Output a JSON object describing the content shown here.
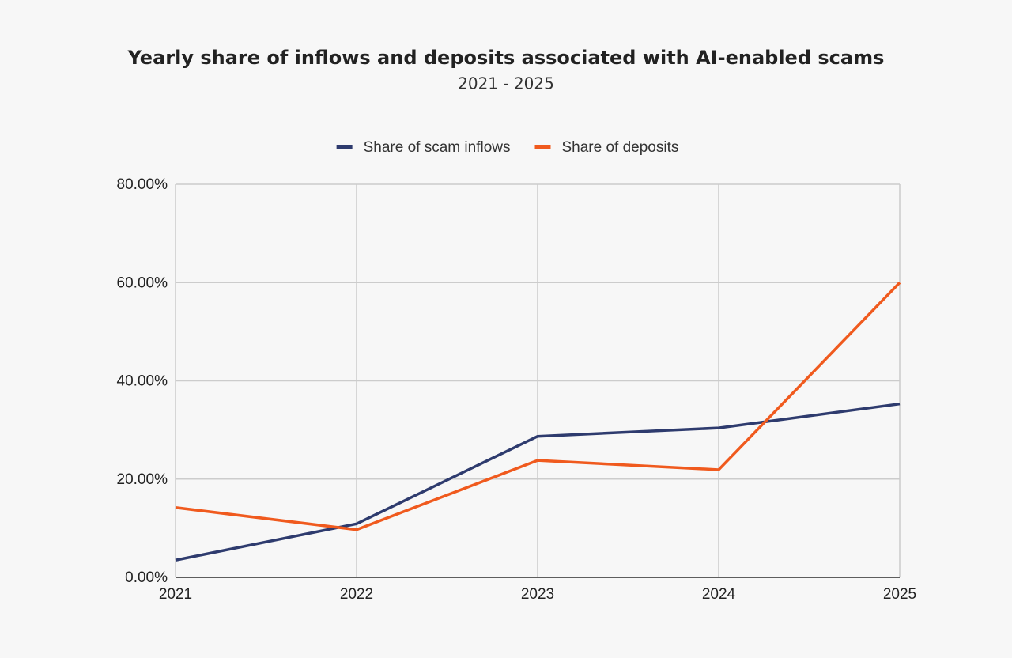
{
  "chart_data": {
    "type": "line",
    "title": "Yearly share of inflows and deposits associated with AI-enabled scams",
    "subtitle": "2021 - 2025",
    "categories": [
      "2021",
      "2022",
      "2023",
      "2024",
      "2025"
    ],
    "series": [
      {
        "name": "Share of scam inflows",
        "color": "#2e3b6e",
        "values": [
          3.5,
          10.9,
          28.7,
          30.4,
          35.3
        ]
      },
      {
        "name": "Share of deposits",
        "color": "#f05a1e",
        "values": [
          14.2,
          9.7,
          23.8,
          21.9,
          60.0
        ]
      }
    ],
    "ylim": [
      0,
      80
    ],
    "yticks": [
      {
        "value": 0,
        "label": "0.00%"
      },
      {
        "value": 20,
        "label": "20.00%"
      },
      {
        "value": 40,
        "label": "40.00%"
      },
      {
        "value": 60,
        "label": "60.00%"
      },
      {
        "value": 80,
        "label": "80.00%"
      }
    ],
    "grid": true,
    "legend": "top"
  }
}
